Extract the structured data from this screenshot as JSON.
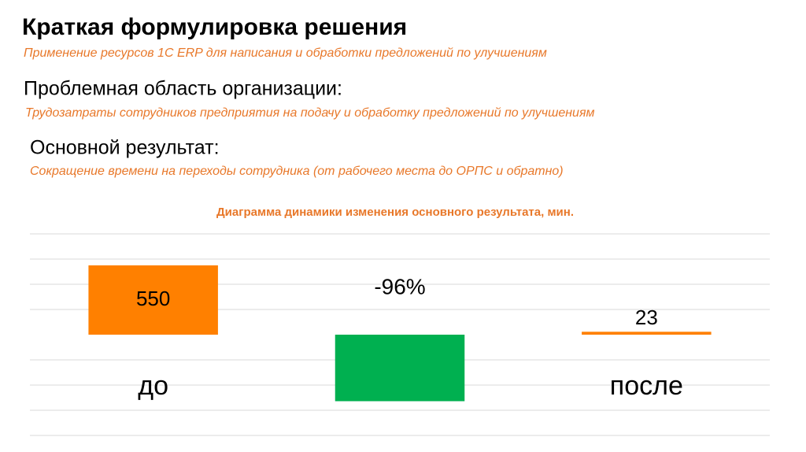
{
  "slide": {
    "title": "Краткая формулировка решения",
    "subtitle": "Применение ресурсов 1С ERP  для написания и обработки  предложений по улучшениям",
    "sections": [
      {
        "heading": "Проблемная область организации:",
        "text": "Трудозатраты сотрудников предприятия на подачу и обработку предложений по улучшениям"
      },
      {
        "heading": "Основной результат:",
        "text": "Сокращение времени на переходы сотрудника (от рабочего места до ОРПС и обратно)"
      }
    ]
  },
  "chart_data": {
    "type": "bar",
    "title": "Диаграмма динамики изменения основного результата, мин.",
    "categories": [
      "до",
      null,
      "после"
    ],
    "values": [
      550,
      null,
      23
    ],
    "value_labels": [
      "550",
      null,
      "23"
    ],
    "color": "#ff8000",
    "change": {
      "value": -96,
      "label": "-96%",
      "color": "#00b050"
    },
    "ylim": [
      -800,
      800
    ]
  }
}
